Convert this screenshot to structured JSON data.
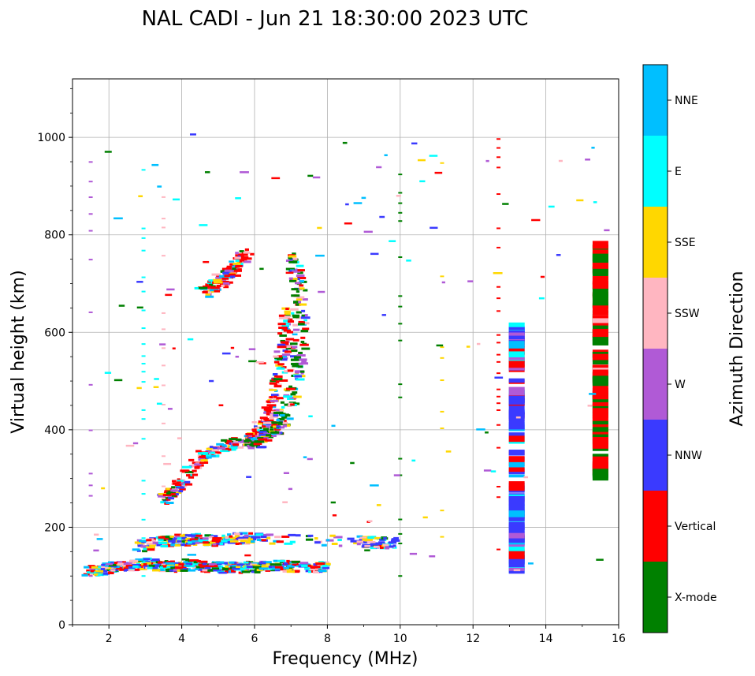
{
  "chart_data": {
    "type": "scatter",
    "title": "NAL CADI - Jun 21 18:30:00 2023 UTC",
    "xlabel": "Frequency (MHz)",
    "ylabel": "Virtual height (km)",
    "xlim": [
      1,
      16
    ],
    "ylim": [
      0,
      1120
    ],
    "xticks": [
      2,
      4,
      6,
      8,
      10,
      12,
      14,
      16
    ],
    "yticks": [
      0,
      200,
      400,
      600,
      800,
      1000
    ],
    "grid": true,
    "colorbar": {
      "label": "Azimuth Direction",
      "position": "right",
      "categories": [
        {
          "name": "X-mode",
          "color": "#008000"
        },
        {
          "name": "Vertical",
          "color": "#ff0000"
        },
        {
          "name": "NNW",
          "color": "#3a3aff"
        },
        {
          "name": "W",
          "color": "#b05ad6"
        },
        {
          "name": "SSW",
          "color": "#ffb6c1"
        },
        {
          "name": "SSE",
          "color": "#ffd700"
        },
        {
          "name": "E",
          "color": "#00ffff"
        },
        {
          "name": "NNE",
          "color": "#00bfff"
        }
      ]
    },
    "series": [
      {
        "name": "E-layer trace",
        "points": [
          [
            1.5,
            108
          ],
          [
            1.8,
            112
          ],
          [
            2.2,
            118
          ],
          [
            2.6,
            122
          ],
          [
            3.0,
            125
          ],
          [
            3.4,
            120
          ],
          [
            3.8,
            118
          ],
          [
            4.2,
            122
          ],
          [
            4.6,
            120
          ],
          [
            5.0,
            118
          ],
          [
            5.4,
            117
          ],
          [
            5.8,
            118
          ],
          [
            6.2,
            119
          ],
          [
            6.6,
            120
          ],
          [
            7.0,
            120
          ],
          [
            7.6,
            118
          ],
          [
            8.0,
            117
          ]
        ]
      },
      {
        "name": "Es trace",
        "points": [
          [
            2.8,
            160
          ],
          [
            3.3,
            170
          ],
          [
            3.8,
            172
          ],
          [
            4.3,
            175
          ],
          [
            4.8,
            172
          ],
          [
            5.3,
            176
          ],
          [
            5.8,
            178
          ],
          [
            6.3,
            178
          ],
          [
            9.0,
            170
          ],
          [
            9.4,
            168
          ],
          [
            9.8,
            168
          ]
        ]
      },
      {
        "name": "F-layer O trace",
        "points": [
          [
            3.5,
            255
          ],
          [
            3.8,
            275
          ],
          [
            4.1,
            300
          ],
          [
            4.5,
            340
          ],
          [
            5.0,
            360
          ],
          [
            5.5,
            372
          ],
          [
            6.0,
            385
          ],
          [
            6.3,
            410
          ],
          [
            6.5,
            450
          ],
          [
            6.7,
            520
          ],
          [
            6.8,
            580
          ],
          [
            6.9,
            640
          ]
        ]
      },
      {
        "name": "F-layer X trace",
        "points": [
          [
            5.9,
            370
          ],
          [
            6.2,
            380
          ],
          [
            6.5,
            395
          ],
          [
            6.8,
            420
          ],
          [
            7.0,
            470
          ],
          [
            7.2,
            540
          ],
          [
            7.3,
            620
          ],
          [
            7.2,
            700
          ],
          [
            7.1,
            760
          ]
        ]
      },
      {
        "name": "F 2-hop trace",
        "points": [
          [
            4.6,
            680
          ],
          [
            5.0,
            700
          ],
          [
            5.3,
            720
          ],
          [
            5.5,
            740
          ],
          [
            5.8,
            760
          ]
        ]
      },
      {
        "name": "Column 15.5 MHz",
        "points": [
          [
            15.5,
            300
          ],
          [
            15.5,
            400
          ],
          [
            15.5,
            480
          ],
          [
            15.5,
            580
          ],
          [
            15.5,
            680
          ],
          [
            15.5,
            780
          ]
        ]
      },
      {
        "name": "Column 13.2 MHz",
        "points": [
          [
            13.2,
            110
          ],
          [
            13.2,
            180
          ],
          [
            13.2,
            280
          ],
          [
            13.2,
            450
          ],
          [
            13.2,
            540
          ],
          [
            13.2,
            610
          ]
        ]
      }
    ]
  }
}
